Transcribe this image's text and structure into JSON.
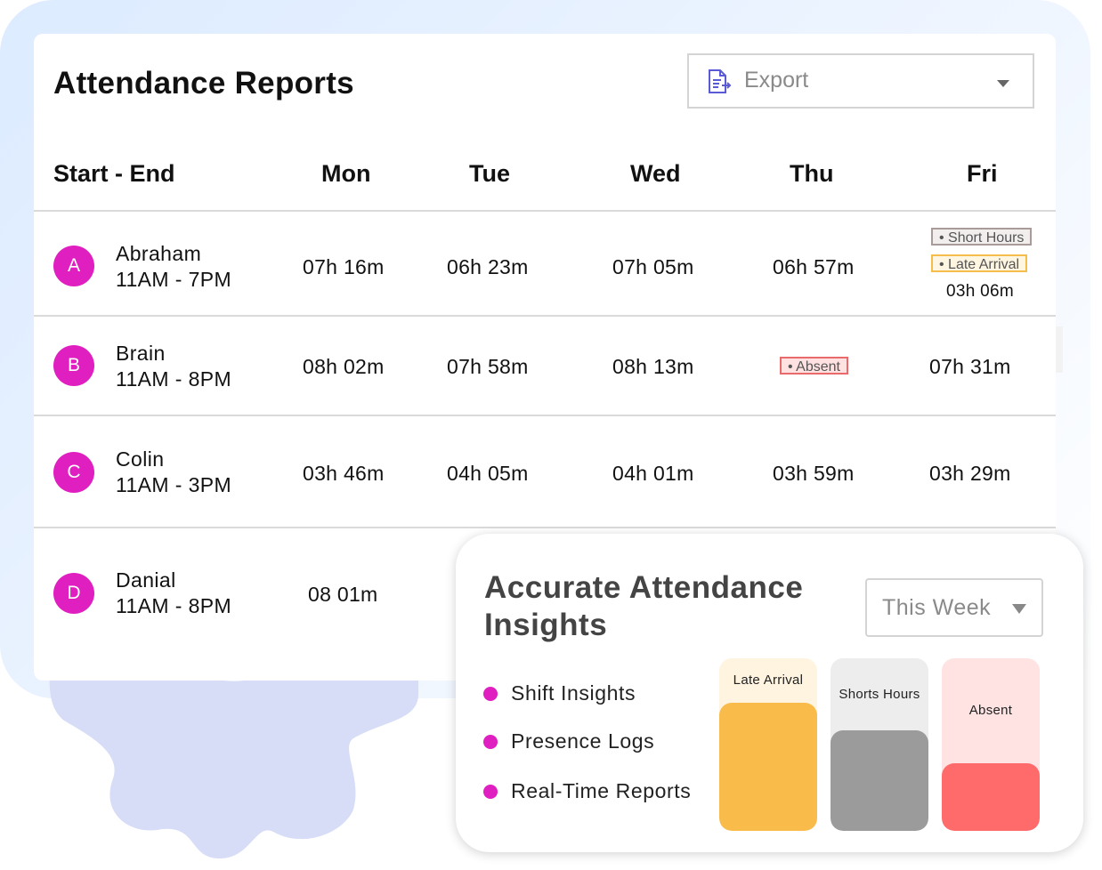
{
  "report": {
    "title": "Attendance Reports",
    "export_label": "Export",
    "columns": [
      "Start - End",
      "Mon",
      "Tue",
      "Wed",
      "Thu",
      "Fri"
    ],
    "rows": [
      {
        "initial": "A",
        "name": "Abraham",
        "shift": "11AM  -  7PM",
        "mon": "07h 16m",
        "tue": "06h 23m",
        "wed": "07h 05m",
        "thu": "06h 57m",
        "fri": "03h 06m",
        "fri_tags": [
          "Short Hours",
          "Late Arrival"
        ]
      },
      {
        "initial": "B",
        "name": "Brain",
        "shift": "11AM  -  8PM",
        "mon": "08h 02m",
        "tue": "07h 58m",
        "wed": "08h 13m",
        "thu_tag": "Absent",
        "fri": "07h 31m"
      },
      {
        "initial": "C",
        "name": "Colin",
        "shift": "11AM  -  3PM",
        "mon": "03h 46m",
        "tue": "04h 05m",
        "wed": "04h 01m",
        "thu": "03h 59m",
        "fri": "03h 29m"
      },
      {
        "initial": "D",
        "name": "Danial",
        "shift": "11AM  -  8PM",
        "mon": "08 01m"
      }
    ]
  },
  "insights": {
    "title_line1": "Accurate Attendance",
    "title_line2": "Insights",
    "period": "This Week",
    "features": [
      "Shift Insights",
      "Presence Logs",
      "Real-Time Reports"
    ],
    "bars": [
      {
        "label": "Late Arrival",
        "level": 0.74,
        "color": "#f9bb4a",
        "bg": "#fff4df"
      },
      {
        "label": "Shorts Hours",
        "level": 0.58,
        "color": "#9b9b9b",
        "bg": "#ededed"
      },
      {
        "label": "Absent",
        "level": 0.39,
        "color": "#ff6b6b",
        "bg": "#ffe3e3"
      }
    ]
  },
  "colors": {
    "avatar": "#e01fc1",
    "bullet": "#e01fc1"
  }
}
